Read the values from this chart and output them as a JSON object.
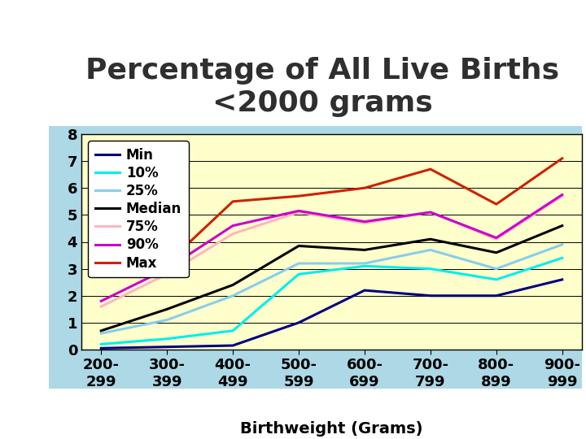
{
  "title_line1": "Percentage of All Live Births",
  "title_line2": "\u00002000 grams",
  "title_text": "Percentage of All Live Births\n<2000 grams",
  "xlabel": "Birthweight (Grams)",
  "ylabel": "",
  "categories": [
    "200-\n299",
    "300-\n399",
    "400-\n499",
    "500-\n599",
    "600-\n699",
    "700-\n799",
    "800-\n899",
    "900-\n999"
  ],
  "cat_labels": [
    "200-\n299",
    "300-\n399",
    "400-\n499",
    "500-\n599",
    "600-\n699",
    "700-\n799",
    "800-\n899",
    "900-\n999"
  ],
  "series_order": [
    "Min",
    "10%",
    "25%",
    "Median",
    "75%",
    "90%",
    "Max"
  ],
  "series": {
    "Min": [
      0.05,
      0.1,
      0.15,
      1.0,
      2.2,
      2.0,
      2.0,
      2.6
    ],
    "10%": [
      0.2,
      0.4,
      0.7,
      2.8,
      3.1,
      3.0,
      2.6,
      3.4
    ],
    "25%": [
      0.6,
      1.1,
      2.0,
      3.2,
      3.2,
      3.7,
      3.0,
      3.9
    ],
    "Median": [
      0.7,
      1.5,
      2.4,
      3.85,
      3.7,
      4.1,
      3.6,
      4.6
    ],
    "75%": [
      1.6,
      2.8,
      4.3,
      5.1,
      4.7,
      5.1,
      4.1,
      5.7
    ],
    "90%": [
      1.8,
      3.0,
      4.6,
      5.15,
      4.75,
      5.1,
      4.15,
      5.75
    ],
    "Max": [
      3.05,
      3.2,
      5.5,
      5.7,
      6.0,
      6.7,
      5.4,
      7.1
    ]
  },
  "colors": {
    "Min": "#000080",
    "10%": "#00EEEE",
    "25%": "#87CEEB",
    "Median": "#000000",
    "75%": "#FFB6C1",
    "90%": "#CC00CC",
    "Max": "#CC2200"
  },
  "ylim": [
    0,
    8
  ],
  "yticks": [
    0,
    1,
    2,
    3,
    4,
    5,
    6,
    7,
    8
  ],
  "bg_plot": "#FFFFCC",
  "bg_chart_outer": "#ADD8E6",
  "bg_figure": "#FFFFFF",
  "title_fontsize": 26,
  "xlabel_fontsize": 14,
  "tick_fontsize": 13,
  "legend_fontsize": 12,
  "linewidth": 2.2,
  "title_color": "#2F2F2F"
}
